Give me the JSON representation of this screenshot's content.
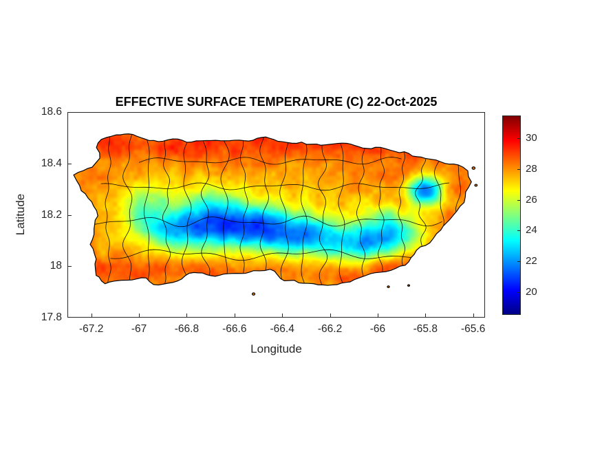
{
  "chart_data": {
    "type": "heatmap",
    "title": "EFFECTIVE SURFACE TEMPERATURE (C) 22-Oct-2025",
    "xlabel": "Longitude",
    "ylabel": "Latitude",
    "xlim": [
      -67.3,
      -65.55
    ],
    "ylim": [
      17.8,
      18.6
    ],
    "grid": false,
    "xticks": {
      "values": [
        -67.2,
        -67,
        -66.8,
        -66.6,
        -66.4,
        -66.2,
        -66,
        -65.8,
        -65.6
      ],
      "labels": [
        "-67.2",
        "-67",
        "-66.8",
        "-66.6",
        "-66.4",
        "-66.2",
        "-66",
        "-65.8",
        "-65.6"
      ]
    },
    "yticks": {
      "values": [
        18.6,
        18.4,
        18.2,
        18,
        17.8
      ],
      "labels": [
        "18.6",
        "18.4",
        "18.2",
        "18",
        "17.8"
      ]
    },
    "colorbar": {
      "vmin": 18.5,
      "vmax": 31.5,
      "tick_values": [
        20,
        22,
        24,
        26,
        28,
        30
      ],
      "tick_labels": [
        "20",
        "22",
        "24",
        "26",
        "28",
        "30"
      ],
      "colormap": "jet",
      "position": "right"
    },
    "colors": {
      "background": "#ffffff",
      "axis_text": "#262626",
      "title_text": "#000000",
      "coastline": "#000000",
      "municipal_boundaries": "#000000"
    },
    "field": {
      "base_temp_c": 28.3,
      "warm_bands": [
        {
          "lat": 18.47,
          "sigma": 0.05,
          "amp": 0.9
        },
        {
          "lat": 17.98,
          "sigma": 0.05,
          "amp": 0.9
        }
      ],
      "cool_centers": [
        [
          -66.55,
          18.16,
          1.8,
          0.4,
          0.13
        ],
        [
          -66.05,
          18.1,
          1.0,
          0.18,
          0.09
        ],
        [
          -66.88,
          18.14,
          3.8,
          0.075,
          0.048
        ],
        [
          -66.76,
          18.155,
          4.6,
          0.07,
          0.05
        ],
        [
          -66.63,
          18.165,
          6.2,
          0.085,
          0.052
        ],
        [
          -66.5,
          18.15,
          5.6,
          0.08,
          0.05
        ],
        [
          -66.37,
          18.125,
          4.6,
          0.075,
          0.048
        ],
        [
          -66.24,
          18.115,
          4.0,
          0.07,
          0.045
        ],
        [
          -66.1,
          18.085,
          4.4,
          0.065,
          0.042
        ],
        [
          -66.0,
          18.105,
          3.2,
          0.05,
          0.04
        ],
        [
          -65.8,
          18.295,
          7.5,
          0.048,
          0.038
        ],
        [
          -67.0,
          18.21,
          2.0,
          0.07,
          0.06
        ],
        [
          -66.93,
          18.26,
          1.5,
          0.06,
          0.05
        ],
        [
          -66.7,
          18.27,
          1.5,
          0.08,
          0.05
        ],
        [
          -65.9,
          18.12,
          3.4,
          0.06,
          0.045
        ],
        [
          -65.97,
          18.17,
          2.4,
          0.055,
          0.045
        ]
      ],
      "saturation": 9.6,
      "clamp": [
        19.2,
        31.2
      ],
      "noise": {
        "octaves": [
          {
            "scale": 0.05,
            "amp": 1.0,
            "seed": 7
          },
          {
            "scale": 0.017,
            "amp": 0.55,
            "seed": 13
          }
        ]
      }
    },
    "island": {
      "name_hint": "coastline-outline",
      "rugged_amp": 0.008,
      "outline": [
        [
          -67.159,
          18.495
        ],
        [
          -67.095,
          18.515
        ],
        [
          -67.045,
          18.512
        ],
        [
          -66.957,
          18.488
        ],
        [
          -66.9,
          18.487
        ],
        [
          -66.838,
          18.49
        ],
        [
          -66.78,
          18.485
        ],
        [
          -66.7,
          18.488
        ],
        [
          -66.62,
          18.494
        ],
        [
          -66.54,
          18.49
        ],
        [
          -66.47,
          18.498
        ],
        [
          -66.4,
          18.487
        ],
        [
          -66.34,
          18.478
        ],
        [
          -66.255,
          18.48
        ],
        [
          -66.185,
          18.47
        ],
        [
          -66.13,
          18.472
        ],
        [
          -66.08,
          18.465
        ],
        [
          -66.01,
          18.46
        ],
        [
          -65.945,
          18.455
        ],
        [
          -65.87,
          18.44
        ],
        [
          -65.8,
          18.42
        ],
        [
          -65.735,
          18.405
        ],
        [
          -65.665,
          18.39
        ],
        [
          -65.625,
          18.37
        ],
        [
          -65.61,
          18.33
        ],
        [
          -65.635,
          18.29
        ],
        [
          -65.64,
          18.25
        ],
        [
          -65.7,
          18.185
        ],
        [
          -65.74,
          18.145
        ],
        [
          -65.785,
          18.095
        ],
        [
          -65.835,
          18.06
        ],
        [
          -65.885,
          18.005
        ],
        [
          -65.945,
          17.985
        ],
        [
          -66.01,
          17.975
        ],
        [
          -66.08,
          17.95
        ],
        [
          -66.17,
          17.93
        ],
        [
          -66.25,
          17.925
        ],
        [
          -66.33,
          17.94
        ],
        [
          -66.39,
          17.945
        ],
        [
          -66.45,
          17.985
        ],
        [
          -66.52,
          17.985
        ],
        [
          -66.59,
          17.97
        ],
        [
          -66.68,
          17.965
        ],
        [
          -66.77,
          17.975
        ],
        [
          -66.84,
          17.945
        ],
        [
          -66.92,
          17.925
        ],
        [
          -66.99,
          17.955
        ],
        [
          -67.07,
          17.95
        ],
        [
          -67.14,
          17.935
        ],
        [
          -67.185,
          17.965
        ],
        [
          -67.175,
          18.03
        ],
        [
          -67.205,
          18.085
        ],
        [
          -67.185,
          18.145
        ],
        [
          -67.175,
          18.195
        ],
        [
          -67.195,
          18.255
        ],
        [
          -67.24,
          18.295
        ],
        [
          -67.27,
          18.35
        ],
        [
          -67.235,
          18.375
        ],
        [
          -67.195,
          18.385
        ],
        [
          -67.165,
          18.42
        ],
        [
          -67.175,
          18.46
        ]
      ],
      "islets": [
        {
          "lon": -65.598,
          "lat": 18.382,
          "r": 2.2
        },
        {
          "lon": -65.588,
          "lat": 18.315,
          "r": 1.8
        },
        {
          "lon": -66.52,
          "lat": 17.892,
          "r": 2.0
        },
        {
          "lon": -65.955,
          "lat": 17.92,
          "r": 1.6
        },
        {
          "lon": -65.87,
          "lat": 17.925,
          "r": 1.4
        }
      ]
    },
    "boundaries": {
      "seed": 1234,
      "vertical_lons": [
        -67.13,
        -67.045,
        -66.965,
        -66.885,
        -66.8,
        -66.72,
        -66.64,
        -66.56,
        -66.475,
        -66.39,
        -66.31,
        -66.23,
        -66.15,
        -66.07,
        -65.985,
        -65.9,
        -65.82,
        -65.74,
        -65.66
      ],
      "horizontal": [
        {
          "lat": 18.41,
          "from": -67.0,
          "to": -65.9
        },
        {
          "lat": 18.31,
          "from": -67.16,
          "to": -65.7
        },
        {
          "lat": 18.175,
          "from": -67.19,
          "to": -65.73
        },
        {
          "lat": 18.045,
          "from": -67.12,
          "to": -65.82
        }
      ]
    }
  }
}
